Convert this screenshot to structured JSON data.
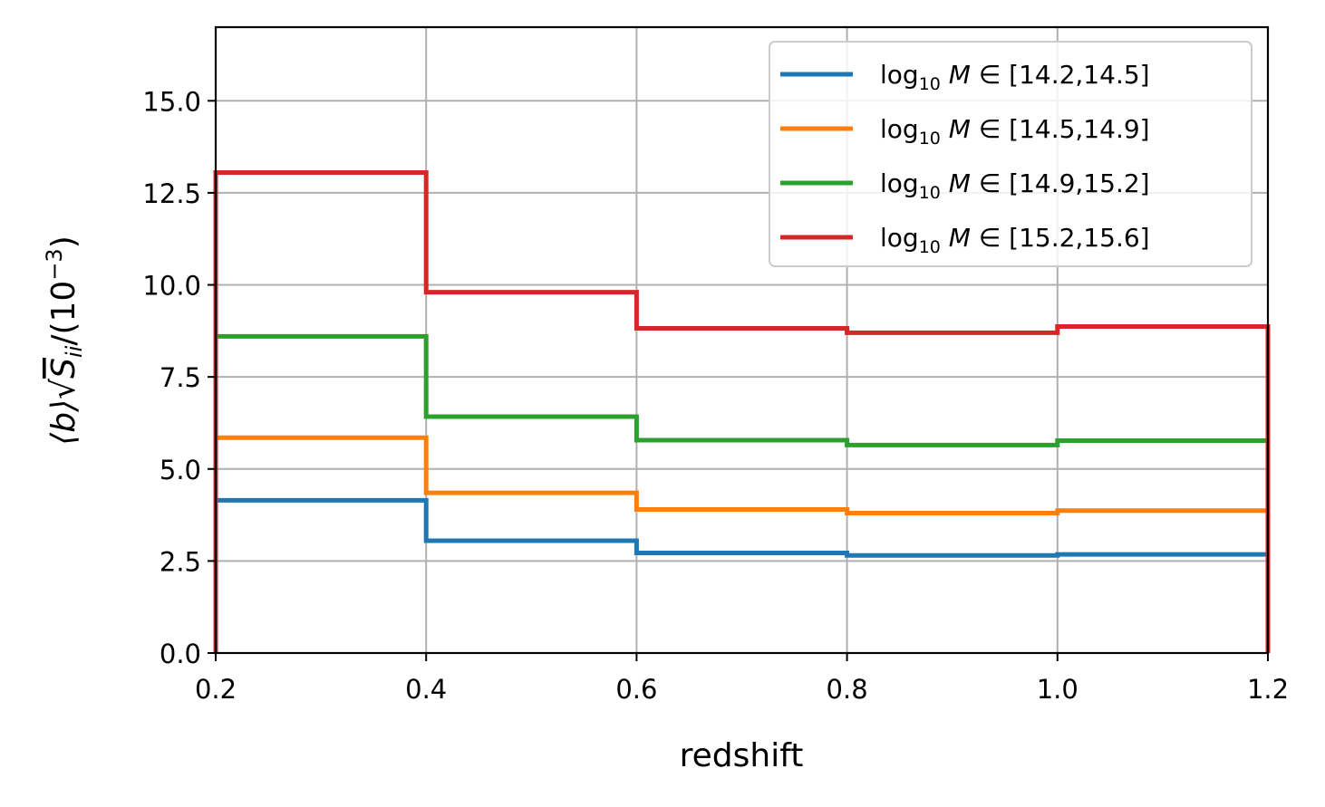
{
  "chart_data": {
    "type": "line",
    "step": "histogram",
    "xlabel": "redshift",
    "ylabel": "⟨b⟩√S_ii /(10⁻³)",
    "xlim": [
      0.2,
      1.2
    ],
    "ylim": [
      0,
      17
    ],
    "xticks": [
      "0.2",
      "0.4",
      "0.6",
      "0.8",
      "1.0",
      "1.2"
    ],
    "yticks": [
      "0.0",
      "2.5",
      "5.0",
      "7.5",
      "10.0",
      "12.5",
      "15.0"
    ],
    "grid": true,
    "legend_position": "top-right",
    "bin_edges": [
      0.2,
      0.4,
      0.6,
      0.8,
      1.0,
      1.2
    ],
    "series": [
      {
        "name": "log10 M ∈ [14.2,14.5]",
        "legend_range": "[14.2,14.5]",
        "color": "#1f77b4",
        "values": [
          4.15,
          3.05,
          2.72,
          2.65,
          2.68
        ]
      },
      {
        "name": "log10 M ∈ [14.5,14.9]",
        "legend_range": "[14.5,14.9]",
        "color": "#ff7f0e",
        "values": [
          5.85,
          4.35,
          3.9,
          3.8,
          3.87
        ]
      },
      {
        "name": "log10 M ∈ [14.9,15.2]",
        "legend_range": "[14.9,15.2]",
        "color": "#2ca02c",
        "values": [
          8.6,
          6.42,
          5.78,
          5.65,
          5.77
        ]
      },
      {
        "name": "log10 M ∈ [15.2,15.6]",
        "legend_range": "[15.2,15.6]",
        "color": "#d62728",
        "values": [
          13.05,
          9.8,
          8.82,
          8.7,
          8.87
        ]
      }
    ]
  }
}
